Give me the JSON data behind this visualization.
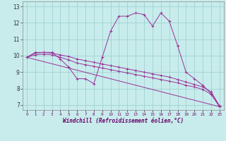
{
  "background_color": "#c8ecec",
  "line_color": "#993399",
  "grid_color": "#99cccc",
  "xlabel": "Windchill (Refroidissement éolien,°C)",
  "ylabel_ticks": [
    7,
    8,
    9,
    10,
    11,
    12,
    13
  ],
  "xlabel_ticks": [
    0,
    1,
    2,
    3,
    4,
    5,
    6,
    7,
    8,
    9,
    10,
    11,
    12,
    13,
    14,
    15,
    16,
    17,
    18,
    19,
    20,
    21,
    22,
    23
  ],
  "xlim": [
    -0.5,
    23.5
  ],
  "ylim": [
    6.7,
    13.3
  ],
  "curve1": {
    "x": [
      0,
      1,
      2,
      3,
      4,
      5,
      6,
      7,
      8,
      9,
      10,
      11,
      12,
      13,
      14,
      15,
      16,
      17,
      18,
      19,
      20,
      21,
      22,
      23
    ],
    "y": [
      9.9,
      10.2,
      10.2,
      10.2,
      9.8,
      9.3,
      8.6,
      8.6,
      8.3,
      9.9,
      11.5,
      12.4,
      12.4,
      12.6,
      12.5,
      11.8,
      12.6,
      12.1,
      10.6,
      9.0,
      8.6,
      8.2,
      7.7,
      6.9
    ]
  },
  "curve2": {
    "x": [
      0,
      1,
      2,
      3,
      4,
      5,
      6,
      7,
      8,
      9,
      10,
      11,
      12,
      13,
      14,
      15,
      16,
      17,
      18,
      19,
      20,
      21,
      22,
      23
    ],
    "y": [
      9.9,
      10.15,
      10.2,
      10.15,
      10.05,
      9.95,
      9.8,
      9.7,
      9.6,
      9.5,
      9.4,
      9.3,
      9.2,
      9.1,
      9.0,
      8.9,
      8.8,
      8.7,
      8.55,
      8.4,
      8.25,
      8.1,
      7.8,
      6.95
    ]
  },
  "curve3": {
    "x": [
      0,
      1,
      2,
      3,
      4,
      5,
      6,
      7,
      8,
      9,
      10,
      11,
      12,
      13,
      14,
      15,
      16,
      17,
      18,
      19,
      20,
      21,
      22,
      23
    ],
    "y": [
      9.9,
      10.05,
      10.1,
      10.05,
      9.9,
      9.75,
      9.55,
      9.45,
      9.35,
      9.25,
      9.15,
      9.05,
      8.95,
      8.85,
      8.75,
      8.65,
      8.55,
      8.45,
      8.35,
      8.2,
      8.1,
      7.95,
      7.65,
      6.9
    ]
  },
  "curve4": {
    "x": [
      0,
      23
    ],
    "y": [
      9.9,
      6.9
    ]
  }
}
